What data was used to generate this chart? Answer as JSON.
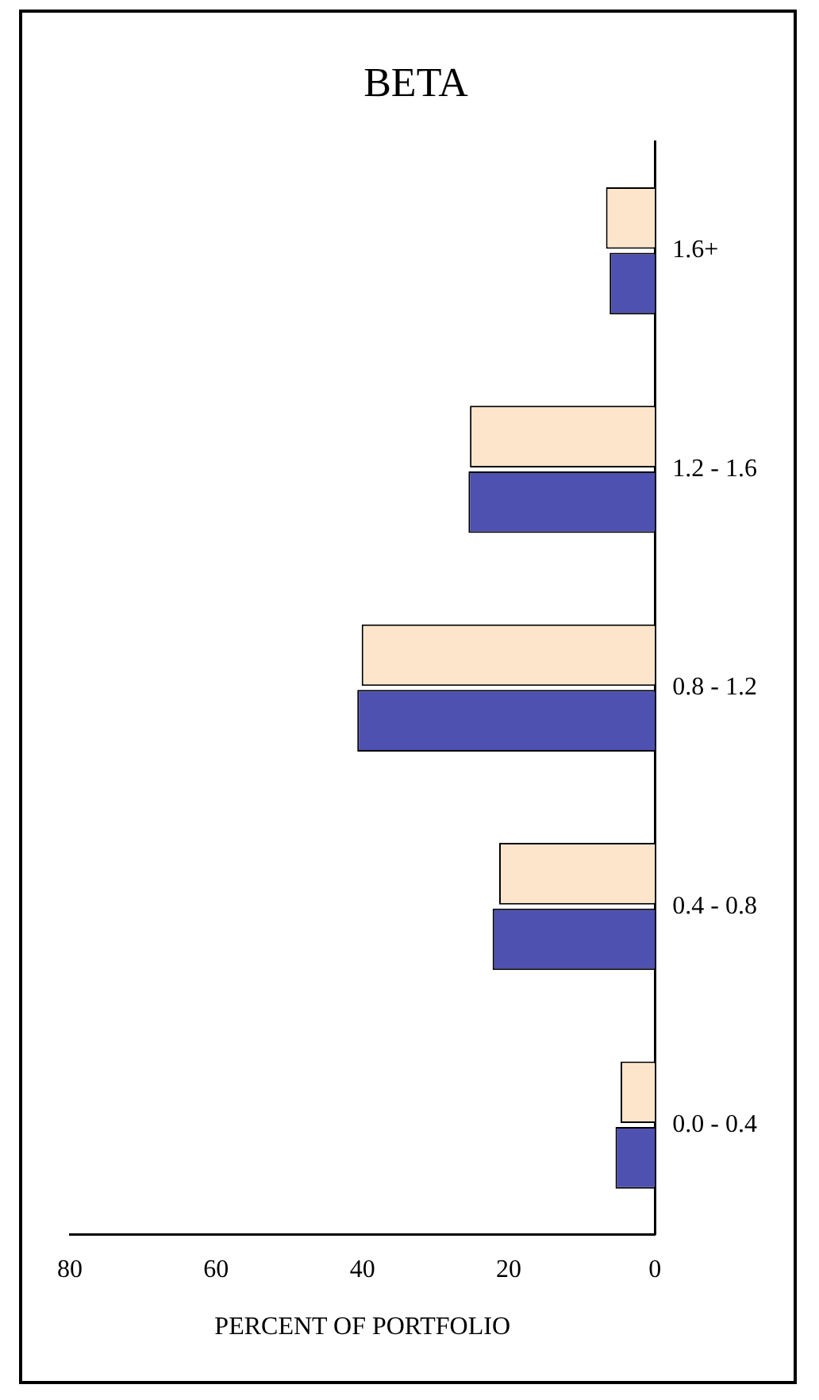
{
  "chart_data": {
    "type": "bar",
    "orientation": "horizontal",
    "title": "BETA",
    "xlabel": "PERCENT OF PORTFOLIO",
    "categories": [
      "1.6+",
      "1.2 - 1.6",
      "0.8 - 1.2",
      "0.4 - 0.8",
      "0.0 - 0.4"
    ],
    "series": [
      {
        "color": "#fde5cc",
        "values": [
          6.7,
          25.3,
          40.1,
          21.3,
          4.7
        ]
      },
      {
        "color": "#4f51b0",
        "values": [
          6.2,
          25.5,
          40.7,
          22.2,
          5.4
        ]
      }
    ],
    "xlim": [
      80,
      0
    ],
    "xticks": [
      80,
      60,
      40,
      20,
      0
    ],
    "grid": false,
    "legend": false
  }
}
